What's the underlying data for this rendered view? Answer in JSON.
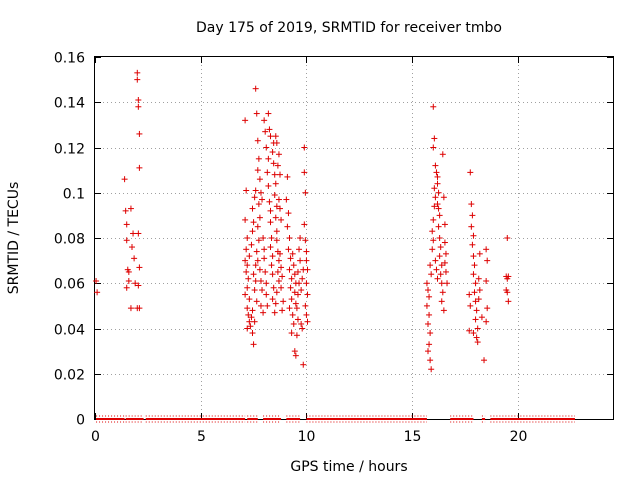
{
  "chart_data": {
    "type": "scatter",
    "title": "Day 175 of 2019, SRMTID for receiver tmbo",
    "xlabel": "GPS time / hours",
    "ylabel": "SRMTID / TECUs",
    "xlim": [
      0,
      24.5
    ],
    "ylim": [
      0,
      0.16
    ],
    "xticks": [
      0,
      5,
      10,
      15,
      20
    ],
    "yticks": [
      0,
      0.02,
      0.04,
      0.06,
      0.08,
      0.1,
      0.12,
      0.14,
      0.16
    ],
    "xtick_labels": [
      "0",
      "5",
      "10",
      "15",
      "20"
    ],
    "ytick_labels": [
      "0",
      "0.02",
      "0.04",
      "0.06",
      "0.08",
      "0.1",
      "0.12",
      "0.14",
      "0.16"
    ],
    "grid": true,
    "marker": "+",
    "series": [
      {
        "name": "SRMTID",
        "color": "#dd0000",
        "points": [
          [
            0.05,
            0.061
          ],
          [
            0.1,
            0.056
          ],
          [
            1.4,
            0.106
          ],
          [
            1.45,
            0.092
          ],
          [
            1.5,
            0.086
          ],
          [
            1.5,
            0.079
          ],
          [
            1.55,
            0.066
          ],
          [
            1.6,
            0.065
          ],
          [
            1.5,
            0.058
          ],
          [
            1.6,
            0.061
          ],
          [
            1.7,
            0.049
          ],
          [
            1.7,
            0.093
          ],
          [
            1.75,
            0.076
          ],
          [
            1.8,
            0.082
          ],
          [
            1.85,
            0.071
          ],
          [
            1.9,
            0.06
          ],
          [
            2.0,
            0.153
          ],
          [
            2.0,
            0.15
          ],
          [
            2.05,
            0.141
          ],
          [
            2.05,
            0.138
          ],
          [
            2.1,
            0.126
          ],
          [
            2.1,
            0.111
          ],
          [
            2.05,
            0.082
          ],
          [
            2.1,
            0.067
          ],
          [
            2.0,
            0.049
          ],
          [
            2.05,
            0.059
          ],
          [
            2.1,
            0.049
          ],
          [
            7.1,
            0.132
          ],
          [
            7.15,
            0.101
          ],
          [
            7.1,
            0.088
          ],
          [
            7.2,
            0.08
          ],
          [
            7.15,
            0.075
          ],
          [
            7.1,
            0.07
          ],
          [
            7.2,
            0.068
          ],
          [
            7.15,
            0.065
          ],
          [
            7.25,
            0.062
          ],
          [
            7.2,
            0.058
          ],
          [
            7.1,
            0.055
          ],
          [
            7.3,
            0.053
          ],
          [
            7.2,
            0.049
          ],
          [
            7.25,
            0.046
          ],
          [
            7.3,
            0.043
          ],
          [
            7.35,
            0.041
          ],
          [
            7.2,
            0.04
          ],
          [
            7.4,
            0.045
          ],
          [
            7.45,
            0.048
          ],
          [
            7.3,
            0.072
          ],
          [
            7.4,
            0.077
          ],
          [
            7.45,
            0.083
          ],
          [
            7.5,
            0.087
          ],
          [
            7.45,
            0.093
          ],
          [
            7.55,
            0.098
          ],
          [
            7.6,
            0.101
          ],
          [
            7.5,
            0.064
          ],
          [
            7.6,
            0.061
          ],
          [
            7.55,
            0.057
          ],
          [
            7.65,
            0.052
          ],
          [
            7.5,
            0.033
          ],
          [
            7.45,
            0.038
          ],
          [
            7.55,
            0.043
          ],
          [
            7.6,
            0.068
          ],
          [
            7.7,
            0.07
          ],
          [
            7.65,
            0.074
          ],
          [
            7.75,
            0.079
          ],
          [
            7.7,
            0.085
          ],
          [
            7.8,
            0.089
          ],
          [
            7.75,
            0.095
          ],
          [
            7.8,
            0.066
          ],
          [
            7.85,
            0.061
          ],
          [
            7.9,
            0.057
          ],
          [
            7.85,
            0.05
          ],
          [
            7.95,
            0.047
          ],
          [
            7.6,
            0.146
          ],
          [
            7.65,
            0.135
          ],
          [
            7.7,
            0.123
          ],
          [
            7.75,
            0.115
          ],
          [
            7.7,
            0.11
          ],
          [
            7.8,
            0.106
          ],
          [
            7.85,
            0.1
          ],
          [
            7.9,
            0.097
          ],
          [
            7.95,
            0.08
          ],
          [
            8.0,
            0.075
          ],
          [
            8.0,
            0.071
          ],
          [
            8.05,
            0.065
          ],
          [
            8.1,
            0.06
          ],
          [
            8.1,
            0.055
          ],
          [
            8.15,
            0.05
          ],
          [
            8.0,
            0.132
          ],
          [
            8.05,
            0.127
          ],
          [
            8.1,
            0.12
          ],
          [
            8.2,
            0.115
          ],
          [
            8.15,
            0.109
          ],
          [
            8.2,
            0.103
          ],
          [
            8.25,
            0.096
          ],
          [
            8.3,
            0.092
          ],
          [
            8.3,
            0.087
          ],
          [
            8.35,
            0.08
          ],
          [
            8.3,
            0.076
          ],
          [
            8.4,
            0.072
          ],
          [
            8.35,
            0.068
          ],
          [
            8.4,
            0.064
          ],
          [
            8.45,
            0.058
          ],
          [
            8.4,
            0.053
          ],
          [
            8.2,
            0.135
          ],
          [
            8.25,
            0.128
          ],
          [
            8.3,
            0.125
          ],
          [
            8.45,
            0.122
          ],
          [
            8.4,
            0.118
          ],
          [
            8.45,
            0.113
          ],
          [
            8.5,
            0.108
          ],
          [
            8.55,
            0.104
          ],
          [
            8.5,
            0.099
          ],
          [
            8.6,
            0.094
          ],
          [
            8.55,
            0.089
          ],
          [
            8.6,
            0.083
          ],
          [
            8.6,
            0.079
          ],
          [
            8.65,
            0.074
          ],
          [
            8.7,
            0.07
          ],
          [
            8.65,
            0.065
          ],
          [
            8.7,
            0.061
          ],
          [
            8.6,
            0.056
          ],
          [
            8.55,
            0.051
          ],
          [
            8.5,
            0.047
          ],
          [
            8.55,
            0.125
          ],
          [
            8.6,
            0.122
          ],
          [
            8.7,
            0.117
          ],
          [
            8.65,
            0.112
          ],
          [
            8.75,
            0.108
          ],
          [
            8.7,
            0.097
          ],
          [
            8.75,
            0.093
          ],
          [
            8.8,
            0.088
          ],
          [
            8.75,
            0.073
          ],
          [
            8.8,
            0.067
          ],
          [
            8.85,
            0.063
          ],
          [
            8.8,
            0.058
          ],
          [
            8.9,
            0.052
          ],
          [
            8.85,
            0.048
          ],
          [
            9.1,
            0.107
          ],
          [
            9.05,
            0.097
          ],
          [
            9.15,
            0.091
          ],
          [
            9.1,
            0.085
          ],
          [
            9.2,
            0.08
          ],
          [
            9.15,
            0.075
          ],
          [
            9.25,
            0.071
          ],
          [
            9.2,
            0.066
          ],
          [
            9.3,
            0.062
          ],
          [
            9.25,
            0.058
          ],
          [
            9.3,
            0.053
          ],
          [
            9.2,
            0.049
          ],
          [
            9.35,
            0.046
          ],
          [
            9.4,
            0.042
          ],
          [
            9.3,
            0.038
          ],
          [
            9.35,
            0.073
          ],
          [
            9.4,
            0.068
          ],
          [
            9.45,
            0.064
          ],
          [
            9.5,
            0.06
          ],
          [
            9.45,
            0.056
          ],
          [
            9.5,
            0.051
          ],
          [
            9.45,
            0.03
          ],
          [
            9.5,
            0.028
          ],
          [
            9.55,
            0.037
          ],
          [
            9.6,
            0.044
          ],
          [
            9.55,
            0.049
          ],
          [
            9.6,
            0.055
          ],
          [
            9.65,
            0.06
          ],
          [
            9.6,
            0.065
          ],
          [
            9.7,
            0.07
          ],
          [
            9.65,
            0.075
          ],
          [
            9.7,
            0.08
          ],
          [
            9.75,
            0.057
          ],
          [
            9.8,
            0.062
          ],
          [
            9.85,
            0.066
          ],
          [
            9.75,
            0.042
          ],
          [
            9.8,
            0.04
          ],
          [
            9.85,
            0.024
          ],
          [
            9.9,
            0.12
          ],
          [
            9.95,
            0.1
          ],
          [
            9.9,
            0.086
          ],
          [
            9.95,
            0.079
          ],
          [
            10.0,
            0.074
          ],
          [
            10.0,
            0.07
          ],
          [
            10.05,
            0.066
          ],
          [
            10.0,
            0.06
          ],
          [
            10.05,
            0.055
          ],
          [
            9.95,
            0.05
          ],
          [
            10.0,
            0.046
          ],
          [
            10.05,
            0.043
          ],
          [
            9.9,
            0.109
          ],
          [
            15.7,
            0.06
          ],
          [
            15.75,
            0.057
          ],
          [
            15.8,
            0.054
          ],
          [
            15.7,
            0.05
          ],
          [
            15.8,
            0.046
          ],
          [
            15.75,
            0.042
          ],
          [
            15.85,
            0.038
          ],
          [
            15.8,
            0.033
          ],
          [
            15.75,
            0.03
          ],
          [
            15.85,
            0.026
          ],
          [
            15.9,
            0.022
          ],
          [
            15.85,
            0.068
          ],
          [
            15.9,
            0.064
          ],
          [
            15.95,
            0.075
          ],
          [
            16.0,
            0.079
          ],
          [
            15.95,
            0.083
          ],
          [
            16.0,
            0.088
          ],
          [
            16.05,
            0.094
          ],
          [
            16.1,
            0.098
          ],
          [
            16.05,
            0.102
          ],
          [
            16.1,
            0.112
          ],
          [
            16.0,
            0.12
          ],
          [
            16.05,
            0.124
          ],
          [
            16.0,
            0.138
          ],
          [
            16.15,
            0.109
          ],
          [
            16.2,
            0.104
          ],
          [
            16.25,
            0.1
          ],
          [
            16.2,
            0.095
          ],
          [
            16.3,
            0.09
          ],
          [
            16.25,
            0.085
          ],
          [
            16.3,
            0.08
          ],
          [
            16.35,
            0.076
          ],
          [
            16.3,
            0.072
          ],
          [
            16.4,
            0.068
          ],
          [
            16.35,
            0.064
          ],
          [
            16.4,
            0.06
          ],
          [
            16.45,
            0.056
          ],
          [
            16.4,
            0.052
          ],
          [
            16.5,
            0.048
          ],
          [
            16.45,
            0.117
          ],
          [
            16.5,
            0.098
          ],
          [
            16.55,
            0.086
          ],
          [
            16.55,
            0.078
          ],
          [
            16.6,
            0.073
          ],
          [
            16.55,
            0.069
          ],
          [
            16.6,
            0.065
          ],
          [
            16.65,
            0.06
          ],
          [
            16.2,
            0.107
          ],
          [
            16.25,
            0.093
          ],
          [
            16.1,
            0.07
          ],
          [
            16.15,
            0.066
          ],
          [
            16.2,
            0.062
          ],
          [
            17.75,
            0.109
          ],
          [
            17.8,
            0.095
          ],
          [
            17.85,
            0.09
          ],
          [
            17.8,
            0.085
          ],
          [
            17.9,
            0.081
          ],
          [
            17.85,
            0.077
          ],
          [
            17.9,
            0.072
          ],
          [
            17.95,
            0.068
          ],
          [
            17.9,
            0.064
          ],
          [
            18.0,
            0.06
          ],
          [
            17.95,
            0.056
          ],
          [
            18.0,
            0.052
          ],
          [
            18.05,
            0.048
          ],
          [
            18.0,
            0.044
          ],
          [
            18.1,
            0.04
          ],
          [
            18.05,
            0.036
          ],
          [
            18.1,
            0.034
          ],
          [
            18.15,
            0.062
          ],
          [
            18.2,
            0.057
          ],
          [
            18.15,
            0.053
          ],
          [
            17.9,
            0.038
          ],
          [
            18.3,
            0.045
          ],
          [
            18.4,
            0.026
          ],
          [
            18.5,
            0.075
          ],
          [
            18.55,
            0.07
          ],
          [
            18.5,
            0.061
          ],
          [
            18.55,
            0.049
          ],
          [
            18.5,
            0.043
          ],
          [
            17.7,
            0.055
          ],
          [
            17.75,
            0.05
          ],
          [
            17.7,
            0.039
          ],
          [
            18.2,
            0.073
          ],
          [
            19.5,
            0.08
          ],
          [
            19.45,
            0.063
          ],
          [
            19.5,
            0.062
          ],
          [
            19.55,
            0.063
          ],
          [
            19.45,
            0.057
          ],
          [
            19.5,
            0.056
          ],
          [
            19.55,
            0.052
          ]
        ]
      },
      {
        "name": "zero",
        "color": "#dd0000",
        "segments": [
          [
            0.05,
            1.4
          ],
          [
            1.45,
            2.3
          ],
          [
            2.4,
            7.1
          ],
          [
            7.2,
            7.7
          ],
          [
            7.95,
            8.8
          ],
          [
            9.05,
            9.7
          ],
          [
            10.0,
            15.7
          ],
          [
            16.8,
            17.9
          ],
          [
            18.3,
            18.45
          ],
          [
            18.7,
            22.7
          ]
        ]
      }
    ]
  }
}
